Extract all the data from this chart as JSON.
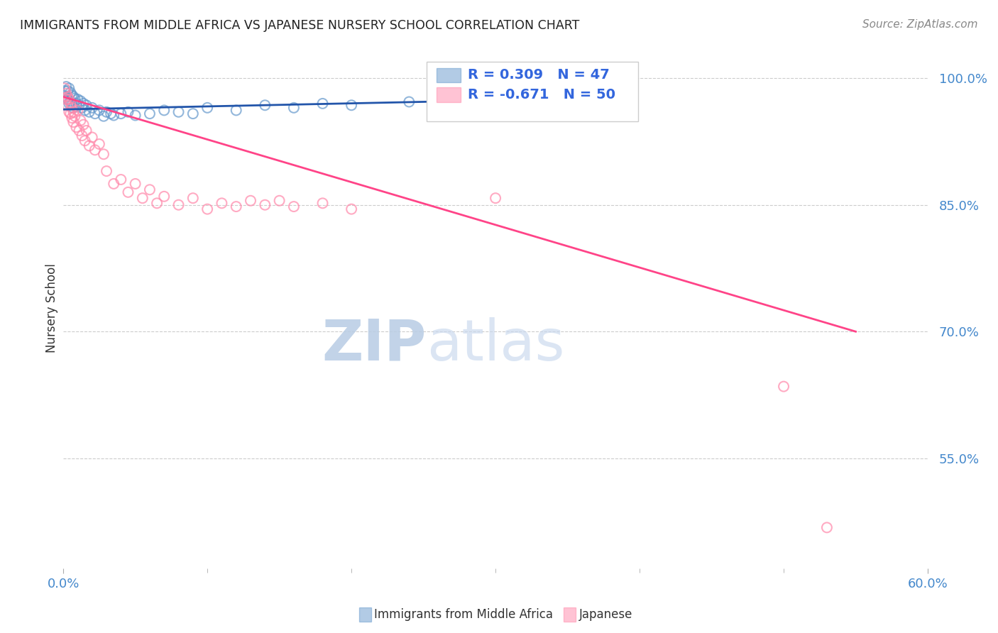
{
  "title": "IMMIGRANTS FROM MIDDLE AFRICA VS JAPANESE NURSERY SCHOOL CORRELATION CHART",
  "source": "Source: ZipAtlas.com",
  "ylabel": "Nursery School",
  "ytick_labels": [
    "100.0%",
    "85.0%",
    "70.0%",
    "55.0%"
  ],
  "ytick_values": [
    1.0,
    0.85,
    0.7,
    0.55
  ],
  "xmin": 0.0,
  "xmax": 0.6,
  "ymin": 0.42,
  "ymax": 1.035,
  "blue_R": 0.309,
  "blue_N": 47,
  "pink_R": -0.671,
  "pink_N": 50,
  "blue_color": "#6699CC",
  "pink_color": "#FF88AA",
  "blue_line_color": "#2255AA",
  "pink_line_color": "#FF4488",
  "watermark_zip": "ZIP",
  "watermark_atlas": "atlas",
  "watermark_color": "#C8D8EE",
  "background_color": "#FFFFFF",
  "grid_color": "#CCCCCC",
  "title_color": "#222222",
  "source_color": "#888888",
  "axis_label_color": "#333333",
  "ytick_color": "#4488CC",
  "xtick_color": "#4488CC",
  "legend_color": "#3366DD",
  "blue_scatter_x": [
    0.001,
    0.002,
    0.002,
    0.003,
    0.003,
    0.004,
    0.004,
    0.005,
    0.005,
    0.006,
    0.006,
    0.007,
    0.007,
    0.008,
    0.009,
    0.01,
    0.011,
    0.012,
    0.013,
    0.014,
    0.015,
    0.016,
    0.018,
    0.02,
    0.022,
    0.025,
    0.028,
    0.03,
    0.033,
    0.035,
    0.04,
    0.045,
    0.05,
    0.06,
    0.07,
    0.08,
    0.09,
    0.1,
    0.12,
    0.14,
    0.16,
    0.18,
    0.2,
    0.24,
    0.28,
    0.32,
    0.36
  ],
  "blue_scatter_y": [
    0.985,
    0.99,
    0.978,
    0.985,
    0.975,
    0.988,
    0.97,
    0.983,
    0.973,
    0.98,
    0.968,
    0.978,
    0.965,
    0.976,
    0.97,
    0.975,
    0.968,
    0.973,
    0.965,
    0.97,
    0.962,
    0.968,
    0.96,
    0.965,
    0.958,
    0.962,
    0.955,
    0.96,
    0.958,
    0.956,
    0.958,
    0.96,
    0.956,
    0.958,
    0.962,
    0.96,
    0.958,
    0.965,
    0.962,
    0.968,
    0.965,
    0.97,
    0.968,
    0.972,
    0.975,
    0.978,
    0.974
  ],
  "pink_scatter_x": [
    0.001,
    0.002,
    0.002,
    0.003,
    0.003,
    0.004,
    0.004,
    0.005,
    0.005,
    0.006,
    0.006,
    0.007,
    0.007,
    0.008,
    0.009,
    0.01,
    0.011,
    0.012,
    0.013,
    0.014,
    0.015,
    0.016,
    0.018,
    0.02,
    0.022,
    0.025,
    0.028,
    0.03,
    0.035,
    0.04,
    0.045,
    0.05,
    0.055,
    0.06,
    0.065,
    0.07,
    0.08,
    0.09,
    0.1,
    0.11,
    0.12,
    0.13,
    0.14,
    0.15,
    0.16,
    0.18,
    0.2,
    0.3,
    0.5,
    0.53
  ],
  "pink_scatter_y": [
    0.988,
    0.982,
    0.975,
    0.978,
    0.968,
    0.975,
    0.96,
    0.97,
    0.958,
    0.965,
    0.953,
    0.96,
    0.948,
    0.955,
    0.942,
    0.962,
    0.938,
    0.95,
    0.932,
    0.945,
    0.926,
    0.938,
    0.92,
    0.93,
    0.915,
    0.922,
    0.91,
    0.89,
    0.875,
    0.88,
    0.865,
    0.875,
    0.858,
    0.868,
    0.852,
    0.86,
    0.85,
    0.858,
    0.845,
    0.852,
    0.848,
    0.855,
    0.85,
    0.855,
    0.848,
    0.852,
    0.845,
    0.858,
    0.635,
    0.468
  ],
  "blue_line_x": [
    0.0,
    0.36
  ],
  "blue_line_y": [
    0.963,
    0.976
  ],
  "pink_line_x": [
    0.0,
    0.55
  ],
  "pink_line_y": [
    0.978,
    0.7
  ],
  "xtick_positions": [
    0.0,
    0.1,
    0.2,
    0.3,
    0.4,
    0.5,
    0.6
  ],
  "xtick_minor_positions": [
    0.05,
    0.15,
    0.25,
    0.35,
    0.45,
    0.55
  ]
}
